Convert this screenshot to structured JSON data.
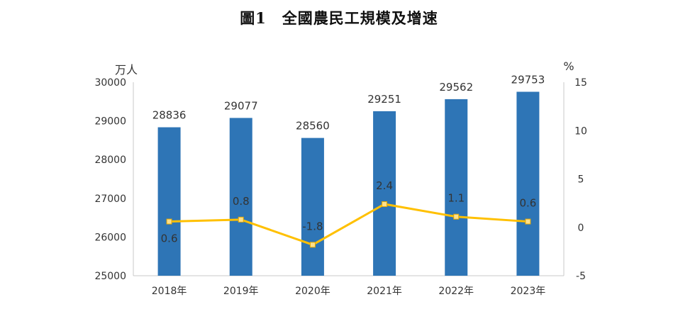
{
  "title": "圖1　全國農民工規模及增速",
  "chart_data": {
    "type": "bar+line",
    "categories": [
      "2018年",
      "2019年",
      "2020年",
      "2021年",
      "2022年",
      "2023年"
    ],
    "series": [
      {
        "kind": "bar",
        "axis": "left",
        "values": [
          28836,
          29077,
          28560,
          29251,
          29562,
          29753
        ],
        "color": "#2E75B6"
      },
      {
        "kind": "line",
        "axis": "right",
        "values": [
          0.6,
          0.8,
          -1.8,
          2.4,
          1.1,
          0.6
        ],
        "color": "#FFC000"
      }
    ],
    "left_axis": {
      "unit": "万人",
      "ylim": [
        25000,
        30000
      ],
      "ticks": [
        25000,
        26000,
        27000,
        28000,
        29000,
        30000
      ]
    },
    "right_axis": {
      "unit": "%",
      "ylim": [
        -5,
        15
      ],
      "ticks": [
        -5,
        0,
        5,
        10,
        15
      ]
    },
    "bar_labels": [
      "28836",
      "29077",
      "28560",
      "29251",
      "29562",
      "29753"
    ],
    "line_labels": [
      "0.6",
      "0.8",
      "-1.8",
      "2.4",
      "1.1",
      "0.6"
    ],
    "grid": false,
    "legend": "none"
  }
}
